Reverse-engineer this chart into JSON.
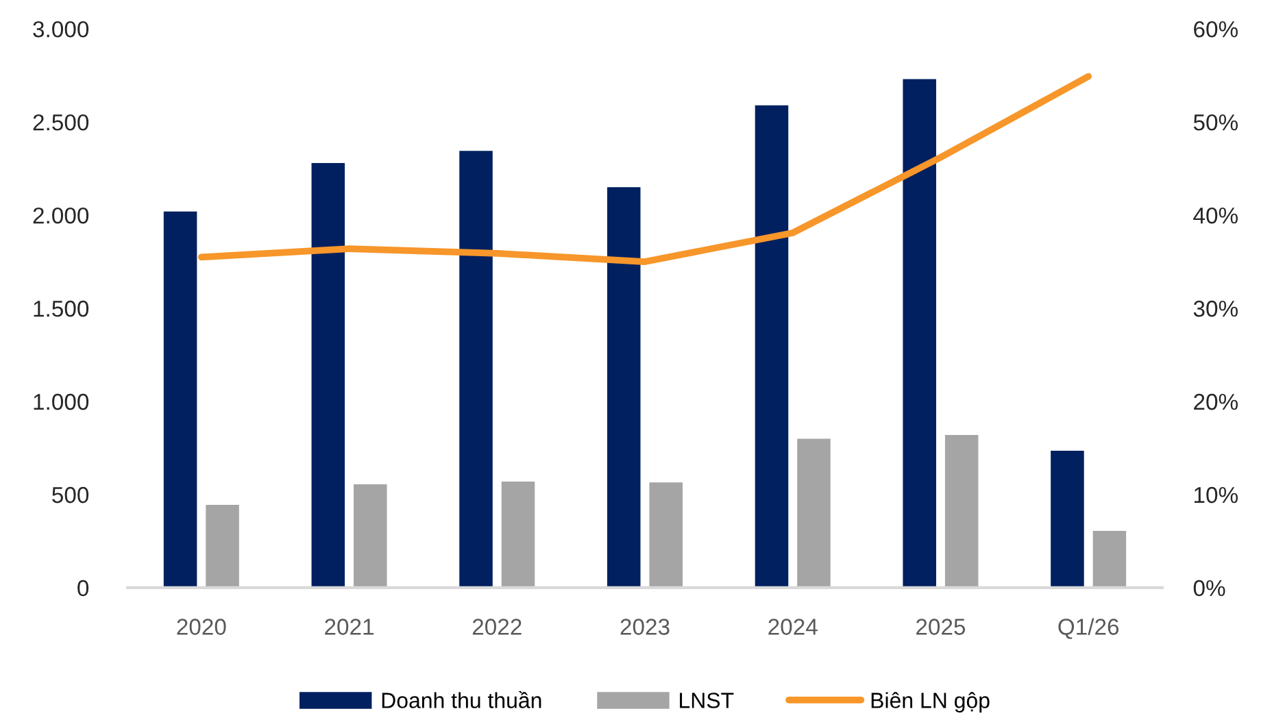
{
  "chart_data": {
    "type": "bar",
    "categories": [
      "2020",
      "2021",
      "2022",
      "2023",
      "2024",
      "2025",
      "Q1/26"
    ],
    "series": [
      {
        "name": "Doanh thu thuần",
        "color": "#002060",
        "values": [
          2020,
          2280,
          2345,
          2150,
          2590,
          2730,
          735
        ]
      },
      {
        "name": "LNST",
        "color": "#a5a5a5",
        "values": [
          445,
          555,
          570,
          565,
          800,
          820,
          305
        ]
      },
      {
        "name": "Biên LN gộp",
        "type": "line",
        "axis": "y2",
        "color": "#f7962a",
        "values": [
          35.5,
          36.4,
          35.9,
          35.0,
          38.1,
          46.2,
          54.9
        ]
      }
    ],
    "ylim": [
      0,
      3000
    ],
    "yticks": [
      0,
      500,
      {
        "value": 1000,
        "label": "1.000"
      },
      {
        "value": 1500,
        "label": "1.500"
      },
      {
        "value": 2000,
        "label": "2.000"
      },
      {
        "value": 2500,
        "label": "2.500"
      },
      {
        "value": 3000,
        "label": "3.000"
      }
    ],
    "y2lim": [
      0,
      60
    ],
    "y2ticks": [
      {
        "value": 0,
        "label": "0%"
      },
      {
        "value": 10,
        "label": "10%"
      },
      {
        "value": 20,
        "label": "20%"
      },
      {
        "value": 30,
        "label": "30%"
      },
      {
        "value": 40,
        "label": "40%"
      },
      {
        "value": 50,
        "label": "50%"
      },
      {
        "value": 60,
        "label": "60%"
      }
    ],
    "legend": "bottom"
  }
}
